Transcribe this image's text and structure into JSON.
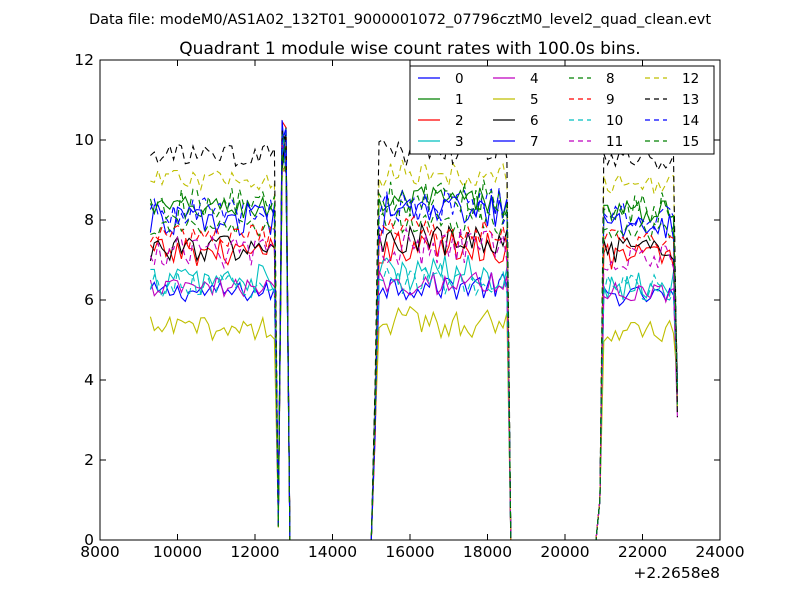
{
  "chart_data": {
    "type": "line",
    "suptitle": "Data file: modeM0/AS1A02_132T01_9000001072_07796cztM0_level2_quad_clean.evt",
    "title": "Quadrant 1 module wise count rates with 100.0s bins.",
    "xlabel": "",
    "ylabel": "",
    "xlim": [
      8000,
      24000
    ],
    "ylim": [
      0,
      12
    ],
    "x_offset_label": "+2.2658e8",
    "x_ticks": [
      8000,
      10000,
      12000,
      14000,
      16000,
      18000,
      20000,
      22000,
      24000
    ],
    "y_ticks": [
      0,
      2,
      4,
      6,
      8,
      10,
      12
    ],
    "legend_position": "upper right",
    "legend_columns": 4,
    "bin_size_s": 100.0,
    "segments": [
      {
        "start": 9300,
        "end": 12500
      },
      {
        "start": 12600,
        "end": 12900
      },
      {
        "start": 15100,
        "end": 18600
      },
      {
        "start": 20900,
        "end": 22900
      }
    ],
    "gaps": [
      [
        12500,
        12600
      ],
      [
        12900,
        15100
      ],
      [
        18600,
        20900
      ]
    ],
    "series": [
      {
        "name": "0",
        "color": "#0000ff",
        "dash": "solid",
        "level": 6.2
      },
      {
        "name": "1",
        "color": "#008000",
        "dash": "solid",
        "level": 8.3
      },
      {
        "name": "2",
        "color": "#ff0000",
        "dash": "solid",
        "level": 7.2
      },
      {
        "name": "3",
        "color": "#00bfbf",
        "dash": "solid",
        "level": 6.5
      },
      {
        "name": "4",
        "color": "#bf00bf",
        "dash": "solid",
        "level": 6.3
      },
      {
        "name": "5",
        "color": "#bfbf00",
        "dash": "solid",
        "level": 5.3
      },
      {
        "name": "6",
        "color": "#000000",
        "dash": "solid",
        "level": 7.3
      },
      {
        "name": "7",
        "color": "#0000ff",
        "dash": "solid",
        "level": 8.0
      },
      {
        "name": "8",
        "color": "#008000",
        "dash": "dashed",
        "level": 7.8
      },
      {
        "name": "9",
        "color": "#ff0000",
        "dash": "dashed",
        "level": 7.6
      },
      {
        "name": "10",
        "color": "#00bfbf",
        "dash": "dashed",
        "level": 6.4
      },
      {
        "name": "11",
        "color": "#bf00bf",
        "dash": "dashed",
        "level": 7.2
      },
      {
        "name": "12",
        "color": "#bfbf00",
        "dash": "dashed",
        "level": 9.0
      },
      {
        "name": "13",
        "color": "#000000",
        "dash": "dashed",
        "level": 9.6
      },
      {
        "name": "14",
        "color": "#0000ff",
        "dash": "dashed",
        "level": 8.2
      },
      {
        "name": "15",
        "color": "#008000",
        "dash": "dashed",
        "level": 8.4
      }
    ]
  }
}
